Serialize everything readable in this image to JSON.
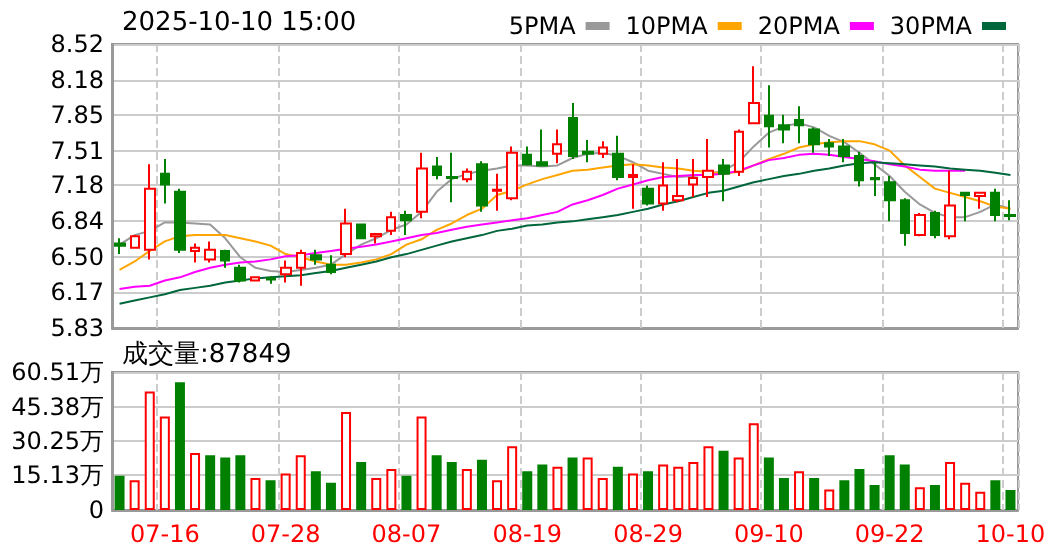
{
  "chart_data": [
    {
      "type": "candlestick",
      "title": "2025-10-10 15:00",
      "tick_labels": "y",
      "grid": true,
      "legend": "top right",
      "categories": [
        null,
        null,
        null,
        null,
        null,
        null,
        null,
        null,
        null,
        null,
        null,
        null,
        null,
        null,
        null,
        null,
        null,
        null,
        null,
        null,
        null,
        null,
        null,
        null,
        null,
        null,
        null,
        null,
        null,
        null,
        null,
        null,
        null,
        null,
        null,
        null,
        null,
        null,
        null,
        null,
        null,
        null,
        null,
        null,
        null,
        null,
        null,
        null,
        null,
        null,
        null,
        null,
        null,
        null,
        null,
        null,
        null,
        null,
        null,
        null
      ],
      "ylim": [
        5.83,
        8.52
      ],
      "yticks": [
        5.83,
        6.17,
        {
          "value": 6.5,
          "label": "6.50"
        },
        6.84,
        7.18,
        7.51,
        7.85,
        8.18,
        8.52
      ],
      "ohlc": [
        [
          6.63,
          6.68,
          6.53,
          6.61
        ],
        [
          6.59,
          6.71,
          6.58,
          6.7
        ],
        [
          6.57,
          7.38,
          6.48,
          7.15
        ],
        [
          7.29,
          7.43,
          7.01,
          7.19
        ],
        [
          7.12,
          7.15,
          6.54,
          6.57
        ],
        [
          6.56,
          6.63,
          6.45,
          6.59
        ],
        [
          6.48,
          6.65,
          6.45,
          6.57
        ],
        [
          6.56,
          6.57,
          6.4,
          6.47
        ],
        [
          6.4,
          6.43,
          6.26,
          6.28
        ],
        [
          6.28,
          6.31,
          6.27,
          6.31
        ],
        [
          6.3,
          6.32,
          6.25,
          6.29
        ],
        [
          6.34,
          6.47,
          6.26,
          6.4
        ],
        [
          6.4,
          6.57,
          6.23,
          6.54
        ],
        [
          6.52,
          6.57,
          6.43,
          6.48
        ],
        [
          6.43,
          6.52,
          6.34,
          6.36
        ],
        [
          6.53,
          6.96,
          6.5,
          6.82
        ],
        [
          6.81,
          6.82,
          6.67,
          6.68
        ],
        [
          6.7,
          6.73,
          6.63,
          6.72
        ],
        [
          6.75,
          6.93,
          6.71,
          6.88
        ],
        [
          6.9,
          6.94,
          6.71,
          6.85
        ],
        [
          6.93,
          7.49,
          6.87,
          7.34
        ],
        [
          7.36,
          7.45,
          7.24,
          7.28
        ],
        [
          7.26,
          7.49,
          7.02,
          7.25
        ],
        [
          7.24,
          7.34,
          7.21,
          7.31
        ],
        [
          7.38,
          7.41,
          6.93,
          6.99
        ],
        [
          7.13,
          7.29,
          6.94,
          7.14
        ],
        [
          7.06,
          7.55,
          7.04,
          7.49
        ],
        [
          7.47,
          7.55,
          7.37,
          7.38
        ],
        [
          7.4,
          7.71,
          7.36,
          7.37
        ],
        [
          7.48,
          7.71,
          7.39,
          7.57
        ],
        [
          7.82,
          7.96,
          7.43,
          7.46
        ],
        [
          7.5,
          7.61,
          7.4,
          7.48
        ],
        [
          7.48,
          7.6,
          7.44,
          7.54
        ],
        [
          7.48,
          7.65,
          7.23,
          7.26
        ],
        [
          7.26,
          7.38,
          6.96,
          7.28
        ],
        [
          7.15,
          7.18,
          6.99,
          7.01
        ],
        [
          7.01,
          7.4,
          6.94,
          7.18
        ],
        [
          7.04,
          7.43,
          7.02,
          7.08
        ],
        [
          7.19,
          7.43,
          7.07,
          7.25
        ],
        [
          7.26,
          7.62,
          7.07,
          7.32
        ],
        [
          7.37,
          7.43,
          7.03,
          7.29
        ],
        [
          7.31,
          7.71,
          7.27,
          7.69
        ],
        [
          7.77,
          8.31,
          7.77,
          7.96
        ],
        [
          7.84,
          8.13,
          7.54,
          7.74
        ],
        [
          7.75,
          7.85,
          7.58,
          7.71
        ],
        [
          7.8,
          7.93,
          7.58,
          7.75
        ],
        [
          7.71,
          7.73,
          7.49,
          7.57
        ],
        [
          7.58,
          7.62,
          7.46,
          7.55
        ],
        [
          7.55,
          7.62,
          7.4,
          7.46
        ],
        [
          7.46,
          7.5,
          7.17,
          7.23
        ],
        [
          7.25,
          7.4,
          7.08,
          7.24
        ],
        [
          7.21,
          7.27,
          6.84,
          7.04
        ],
        [
          7.04,
          7.06,
          6.61,
          6.73
        ],
        [
          6.71,
          6.92,
          6.7,
          6.9
        ],
        [
          6.92,
          6.94,
          6.68,
          6.71
        ],
        [
          6.7,
          7.32,
          6.67,
          6.99
        ],
        [
          7.11,
          7.11,
          6.84,
          7.09
        ],
        [
          7.08,
          7.12,
          6.96,
          7.11
        ],
        [
          7.11,
          7.15,
          6.84,
          6.9
        ],
        [
          6.9,
          7.04,
          6.85,
          6.89
        ]
      ],
      "colors": [
        "#008000",
        "#ff0000",
        "#ff0000",
        "#008000",
        "#008000",
        "#ff0000",
        "#ff0000",
        "#008000",
        "#008000",
        "#ff0000",
        "#008000",
        "#ff0000",
        "#ff0000",
        "#008000",
        "#008000",
        "#ff0000",
        "#008000",
        "#ff0000",
        "#ff0000",
        "#008000",
        "#ff0000",
        "#008000",
        "#008000",
        "#ff0000",
        "#008000",
        "#ff0000",
        "#ff0000",
        "#008000",
        "#008000",
        "#ff0000",
        "#008000",
        "#008000",
        "#ff0000",
        "#008000",
        "#ff0000",
        "#008000",
        "#ff0000",
        "#ff0000",
        "#ff0000",
        "#ff0000",
        "#008000",
        "#ff0000",
        "#ff0000",
        "#008000",
        "#008000",
        "#008000",
        "#008000",
        "#008000",
        "#008000",
        "#008000",
        "#008000",
        "#008000",
        "#008000",
        "#ff0000",
        "#008000",
        "#ff0000",
        "#008000",
        "#ff0000",
        "#008000",
        "#008000"
      ],
      "series": [
        {
          "name": "5PMA",
          "type": "line",
          "color": "#999999",
          "values": [
            6.62,
            6.71,
            6.75,
            6.83,
            6.83,
            6.82,
            6.81,
            6.68,
            6.5,
            6.4,
            6.37,
            6.36,
            6.38,
            6.4,
            6.43,
            6.53,
            6.62,
            6.68,
            6.76,
            6.81,
            6.93,
            7.12,
            7.24,
            7.29,
            7.32,
            7.34,
            7.37,
            7.37,
            7.36,
            7.37,
            7.44,
            7.48,
            7.49,
            7.46,
            7.4,
            7.32,
            7.29,
            7.26,
            7.27,
            7.29,
            7.32,
            7.4,
            7.55,
            7.68,
            7.74,
            7.77,
            7.73,
            7.65,
            7.59,
            7.49,
            7.38,
            7.27,
            7.12,
            7.0,
            6.92,
            6.88,
            6.88,
            6.93,
            7.0,
            6.96
          ]
        },
        {
          "name": "10PMA",
          "type": "line",
          "color": "#ffa500",
          "values": [
            6.38,
            6.46,
            6.56,
            6.65,
            6.7,
            6.71,
            6.71,
            6.71,
            6.68,
            6.65,
            6.61,
            6.53,
            6.5,
            6.46,
            6.43,
            6.43,
            6.45,
            6.48,
            6.53,
            6.62,
            6.67,
            6.76,
            6.82,
            6.9,
            6.96,
            7.09,
            7.13,
            7.19,
            7.24,
            7.28,
            7.32,
            7.33,
            7.35,
            7.37,
            7.38,
            7.37,
            7.35,
            7.34,
            7.32,
            7.31,
            7.29,
            7.31,
            7.37,
            7.43,
            7.48,
            7.54,
            7.57,
            7.59,
            7.6,
            7.6,
            7.57,
            7.51,
            7.37,
            7.26,
            7.15,
            7.11,
            7.07,
            7.03,
            6.98,
            6.96
          ]
        },
        {
          "name": "20PMA",
          "type": "line",
          "color": "#ff00ff",
          "values": [
            6.2,
            6.22,
            6.23,
            6.28,
            6.31,
            6.36,
            6.4,
            6.43,
            6.45,
            6.46,
            6.48,
            6.51,
            6.52,
            6.54,
            6.56,
            6.58,
            6.6,
            6.62,
            6.65,
            6.68,
            6.71,
            6.73,
            6.76,
            6.79,
            6.81,
            6.83,
            6.85,
            6.87,
            6.9,
            6.93,
            7.0,
            7.04,
            7.09,
            7.15,
            7.19,
            7.23,
            7.26,
            7.27,
            7.28,
            7.28,
            7.29,
            7.32,
            7.37,
            7.42,
            7.44,
            7.47,
            7.48,
            7.47,
            7.45,
            7.43,
            7.41,
            7.38,
            7.36,
            7.33,
            7.32,
            7.32,
            7.32,
            null,
            null,
            null
          ]
        },
        {
          "name": "30PMA",
          "type": "line",
          "color": "#00663b",
          "values": [
            6.06,
            6.09,
            6.12,
            6.15,
            6.19,
            6.21,
            6.23,
            6.26,
            6.28,
            6.3,
            6.31,
            6.32,
            6.33,
            6.35,
            6.37,
            6.4,
            6.43,
            6.46,
            6.5,
            6.53,
            6.57,
            6.61,
            6.65,
            6.68,
            6.71,
            6.75,
            6.77,
            6.8,
            6.81,
            6.83,
            6.84,
            6.86,
            6.88,
            6.9,
            6.93,
            6.96,
            7.0,
            7.03,
            7.07,
            7.11,
            7.13,
            7.17,
            7.21,
            7.24,
            7.27,
            7.29,
            7.32,
            7.34,
            7.37,
            7.39,
            7.4,
            7.39,
            7.38,
            7.37,
            7.36,
            7.34,
            7.33,
            7.32,
            7.3,
            7.28
          ]
        }
      ]
    },
    {
      "type": "bar",
      "title": "成交量:87849",
      "grid": true,
      "categories": [
        null,
        null,
        null,
        "07-16",
        null,
        null,
        null,
        null,
        null,
        null,
        null,
        "07-28",
        null,
        null,
        null,
        null,
        null,
        null,
        null,
        "08-07",
        null,
        null,
        null,
        null,
        null,
        null,
        null,
        "08-19",
        null,
        null,
        null,
        null,
        null,
        null,
        null,
        "08-29",
        null,
        null,
        null,
        null,
        null,
        null,
        null,
        "09-10",
        null,
        null,
        null,
        null,
        null,
        null,
        null,
        "09-22",
        null,
        null,
        null,
        null,
        null,
        null,
        null,
        "10-10"
      ],
      "ylim": [
        0,
        60.51
      ],
      "yticks": [
        0,
        {
          "value": 15.13,
          "label": "15.13万"
        },
        {
          "value": 30.25,
          "label": "30.25万"
        },
        {
          "value": 45.38,
          "label": "45.38万"
        },
        {
          "value": 60.51,
          "label": "60.51万"
        }
      ],
      "values": [
        15,
        13,
        52,
        41,
        56,
        25,
        24,
        23,
        24,
        14,
        13,
        16,
        24,
        17,
        12,
        43,
        21,
        14,
        18,
        15,
        41,
        24,
        21,
        18,
        22,
        13,
        28,
        17,
        20,
        19,
        23,
        23,
        14,
        19,
        16,
        17,
        20,
        19,
        21,
        28,
        26,
        23,
        38,
        23,
        14,
        17,
        14,
        9,
        13,
        18,
        11,
        24,
        20,
        10,
        11,
        21,
        12,
        8,
        13,
        8.78
      ],
      "colors": [
        "#008000",
        "#ff0000",
        "#ff0000",
        "#ff0000",
        "#008000",
        "#ff0000",
        "#008000",
        "#008000",
        "#008000",
        "#ff0000",
        "#008000",
        "#ff0000",
        "#ff0000",
        "#008000",
        "#008000",
        "#ff0000",
        "#008000",
        "#ff0000",
        "#ff0000",
        "#008000",
        "#ff0000",
        "#008000",
        "#008000",
        "#ff0000",
        "#008000",
        "#ff0000",
        "#ff0000",
        "#008000",
        "#008000",
        "#ff0000",
        "#008000",
        "#ff0000",
        "#ff0000",
        "#008000",
        "#ff0000",
        "#008000",
        "#ff0000",
        "#ff0000",
        "#ff0000",
        "#ff0000",
        "#008000",
        "#ff0000",
        "#ff0000",
        "#008000",
        "#008000",
        "#ff0000",
        "#008000",
        "#ff0000",
        "#008000",
        "#008000",
        "#008000",
        "#008000",
        "#008000",
        "#ff0000",
        "#008000",
        "#ff0000",
        "#ff0000",
        "#ff0000",
        "#008000",
        "#008000"
      ]
    }
  ]
}
